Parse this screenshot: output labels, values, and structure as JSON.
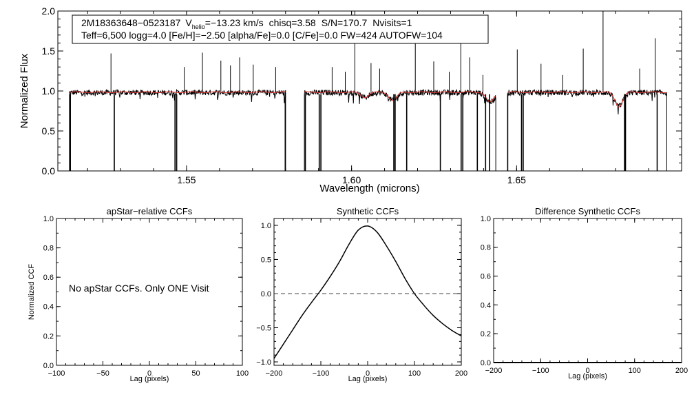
{
  "colors": {
    "observed": "#000000",
    "model": "#e8332f",
    "dashed_zero": "#444444"
  },
  "chart_data": [
    {
      "id": "spectrum",
      "type": "line",
      "title": "",
      "xlabel": "Wavelength (microns)",
      "ylabel": "Normalized Flux",
      "xlim": [
        1.511,
        1.7
      ],
      "ylim": [
        0.0,
        2.0
      ],
      "xticks": [
        1.55,
        1.6,
        1.65
      ],
      "xtick_labels": [
        "1.55",
        "1.60",
        "1.65"
      ],
      "yticks": [
        0.0,
        0.5,
        1.0,
        1.5,
        2.0
      ],
      "ytick_labels": [
        "0.0",
        "0.5",
        "1.0",
        "1.5",
        "2.0"
      ],
      "chip_ranges": [
        [
          1.5145,
          1.58
        ],
        [
          1.5857,
          1.6437
        ],
        [
          1.6473,
          1.6955
        ]
      ],
      "series": [
        {
          "name": "observed",
          "color": "#000000",
          "continuum": 0.98
        },
        {
          "name": "model",
          "color": "#e8332f",
          "continuum": 0.985
        }
      ],
      "absorption_features": [
        {
          "x": 1.604,
          "depth": 0.06
        },
        {
          "x": 1.6125,
          "depth": 0.1
        },
        {
          "x": 1.642,
          "depth": 0.12
        },
        {
          "x": 1.681,
          "depth": 0.17
        }
      ],
      "bad_pixel_spikes_down": [
        1.5148,
        1.5281,
        1.5465,
        1.547,
        1.5799,
        1.586,
        1.5902,
        1.5907,
        1.6128,
        1.6132,
        1.6167,
        1.6269,
        1.6332,
        1.6337,
        1.6381,
        1.6406,
        1.6418,
        1.6473,
        1.6515,
        1.652,
        1.6827,
        1.683,
        1.6926
      ],
      "emission_spikes_up": [
        {
          "x": 1.5271,
          "y": 1.47
        },
        {
          "x": 1.5493,
          "y": 1.3
        },
        {
          "x": 1.5548,
          "y": 1.48
        },
        {
          "x": 1.5604,
          "y": 1.38
        },
        {
          "x": 1.5633,
          "y": 1.32
        },
        {
          "x": 1.5661,
          "y": 1.42
        },
        {
          "x": 1.5702,
          "y": 1.33
        },
        {
          "x": 1.577,
          "y": 1.3
        },
        {
          "x": 1.5941,
          "y": 1.3
        },
        {
          "x": 1.5981,
          "y": 1.24
        },
        {
          "x": 1.601,
          "y": 2.1
        },
        {
          "x": 1.6059,
          "y": 1.35
        },
        {
          "x": 1.6085,
          "y": 1.28
        },
        {
          "x": 1.6193,
          "y": 1.6
        },
        {
          "x": 1.6249,
          "y": 1.37
        },
        {
          "x": 1.6296,
          "y": 1.24
        },
        {
          "x": 1.6331,
          "y": 1.75
        },
        {
          "x": 1.6358,
          "y": 1.42
        },
        {
          "x": 1.6398,
          "y": 1.2
        },
        {
          "x": 1.6502,
          "y": 1.52
        },
        {
          "x": 1.6574,
          "y": 1.34
        },
        {
          "x": 1.664,
          "y": 1.2
        },
        {
          "x": 1.6702,
          "y": 1.53
        },
        {
          "x": 1.6762,
          "y": 2.05
        },
        {
          "x": 1.6873,
          "y": 1.28
        },
        {
          "x": 1.692,
          "y": 1.66
        }
      ],
      "legend_line1": {
        "star_id": "2M18363648−0523187",
        "v_label": "V",
        "v_subscript": "helio",
        "v_value": "=−13.23 km/s",
        "chisq": "chisq=3.58",
        "snr": "S/N=170.7",
        "nvisits": "Nvisits=1"
      },
      "legend_line2": "Teff=6,500 logg=4.0 [Fe/H]=−2.50 [alpha/Fe]=0.0 [C/Fe]=0.0 FW=424 AUTOFW=104"
    },
    {
      "id": "apstar_ccf",
      "type": "line",
      "title": "apStar−relative CCFs",
      "xlabel": "Lag (pixels)",
      "ylabel": "Normalized CCF",
      "xlim": [
        -100,
        100
      ],
      "ylim": [
        0.0,
        1.0
      ],
      "xticks": [
        -100,
        -50,
        0,
        50,
        100
      ],
      "xtick_labels": [
        "−100",
        "−50",
        "0",
        "50",
        "100"
      ],
      "yticks": [
        0.0,
        0.2,
        0.4,
        0.6,
        0.8,
        1.0
      ],
      "ytick_labels": [
        "0.0",
        "0.2",
        "0.4",
        "0.6",
        "0.8",
        "1.0"
      ],
      "series": [],
      "annotation": "No apStar CCFs.  Only ONE Visit"
    },
    {
      "id": "synthetic_ccf",
      "type": "line",
      "title": "Synthetic CCFs",
      "xlabel": "Lag (pixels)",
      "ylabel": "",
      "xlim": [
        -200,
        200
      ],
      "ylim": [
        -1.05,
        1.1
      ],
      "xticks": [
        -200,
        -100,
        0,
        100,
        200
      ],
      "xtick_labels": [
        "−200",
        "−100",
        "0",
        "100",
        "200"
      ],
      "yticks": [
        -1.0,
        -0.5,
        0.0,
        0.5,
        1.0
      ],
      "ytick_labels": [
        "−1.0",
        "−0.5",
        "0.0",
        "0.5",
        "1.0"
      ],
      "zero_line": 0.0,
      "series": [
        {
          "name": "synthetic CCF",
          "color": "#000000",
          "x": [
            -200,
            -180,
            -160,
            -140,
            -120,
            -100,
            -80,
            -60,
            -40,
            -20,
            0,
            20,
            40,
            60,
            80,
            100,
            120,
            140,
            160,
            180,
            200
          ],
          "y": [
            -0.95,
            -0.74,
            -0.53,
            -0.32,
            -0.13,
            0.05,
            0.25,
            0.47,
            0.72,
            0.93,
            0.99,
            0.9,
            0.7,
            0.47,
            0.22,
            0.0,
            -0.17,
            -0.32,
            -0.44,
            -0.54,
            -0.62
          ]
        }
      ]
    },
    {
      "id": "difference_ccf",
      "type": "line",
      "title": "Difference Synthetic CCFs",
      "xlabel": "Lag (pixels)",
      "ylabel": "",
      "xlim": [
        -200,
        200
      ],
      "ylim": [
        0.0,
        1.0
      ],
      "xticks": [
        -200,
        -100,
        0,
        100,
        200
      ],
      "xtick_labels": [
        "−200",
        "−100",
        "0",
        "100",
        "200"
      ],
      "yticks": [
        0.0,
        0.2,
        0.4,
        0.6,
        0.8,
        1.0
      ],
      "ytick_labels": [
        "0.0",
        "0.2",
        "0.4",
        "0.6",
        "0.8",
        "1.0"
      ],
      "series": [
        {
          "name": "difference",
          "color": "#000000",
          "x": [
            -200,
            200
          ],
          "y": [
            0.0,
            0.0
          ]
        }
      ]
    }
  ]
}
